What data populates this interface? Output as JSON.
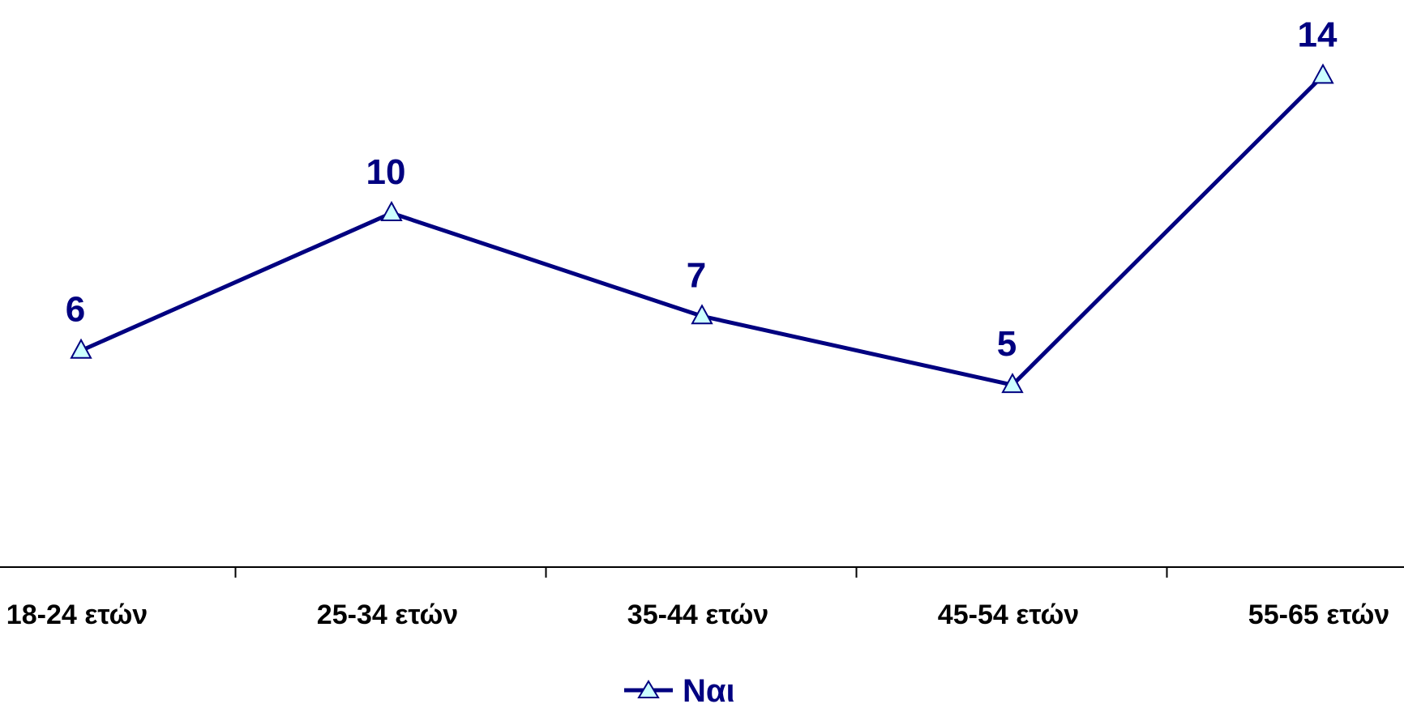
{
  "chart_data": {
    "type": "line",
    "categories": [
      "18-24 ετών",
      "25-34 ετών",
      "35-44 ετών",
      "45-54 ετών",
      "55-65 ετών"
    ],
    "series": [
      {
        "name": "Ναι",
        "values": [
          6,
          10,
          7,
          5,
          14
        ],
        "marker": "triangle"
      }
    ],
    "title": "",
    "xlabel": "",
    "ylabel": "",
    "ylim": [
      -0.3,
      16.2
    ],
    "grid": false,
    "legend": "bottom-center",
    "colors": {
      "line": "#000080",
      "marker_fill": "#CCFFFF",
      "axis": "#000000"
    }
  }
}
